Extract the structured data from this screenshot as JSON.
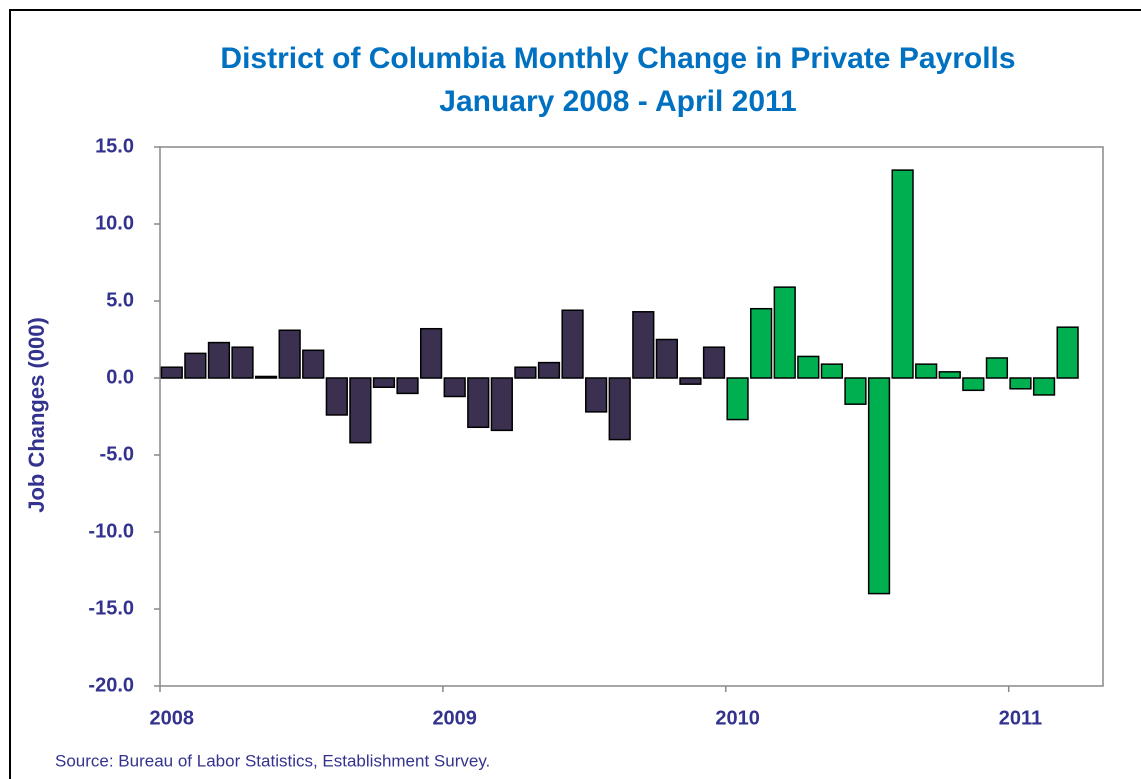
{
  "chart_data": {
    "type": "bar",
    "title": "District of Columbia Monthly Change in Private Payrolls",
    "subtitle": "January 2008 - April 2011",
    "y_label": "Job Changes (000)",
    "source": "Source: Bureau of Labor Statistics, Establishment Survey.",
    "categories": [
      "2008",
      null,
      null,
      null,
      null,
      null,
      null,
      null,
      null,
      null,
      null,
      null,
      "2009",
      null,
      null,
      null,
      null,
      null,
      null,
      null,
      null,
      null,
      null,
      null,
      "2010",
      null,
      null,
      null,
      null,
      null,
      null,
      null,
      null,
      null,
      null,
      null,
      "2011",
      null,
      null,
      null
    ],
    "values": [
      0.7,
      1.6,
      2.3,
      2.0,
      0.1,
      3.1,
      1.8,
      -2.4,
      -4.2,
      -0.6,
      -1.0,
      3.2,
      -1.2,
      -3.2,
      -3.4,
      0.7,
      1.0,
      4.4,
      -2.2,
      -4.0,
      4.3,
      2.5,
      -0.4,
      2.0,
      -2.7,
      4.5,
      5.9,
      1.4,
      0.9,
      -1.7,
      -14.0,
      13.5,
      0.9,
      0.4,
      -0.8,
      1.3,
      -0.7,
      -1.1,
      3.3,
      null
    ],
    "colors": [
      "#3b3050",
      "#3b3050",
      "#3b3050",
      "#3b3050",
      "#3b3050",
      "#3b3050",
      "#3b3050",
      "#3b3050",
      "#3b3050",
      "#3b3050",
      "#3b3050",
      "#3b3050",
      "#3b3050",
      "#3b3050",
      "#3b3050",
      "#3b3050",
      "#3b3050",
      "#3b3050",
      "#3b3050",
      "#3b3050",
      "#3b3050",
      "#3b3050",
      "#3b3050",
      "#3b3050",
      "#00b050",
      "#00b050",
      "#00b050",
      "#00b050",
      "#00b050",
      "#00b050",
      "#00b050",
      "#00b050",
      "#00b050",
      "#00b050",
      "#00b050",
      "#00b050",
      "#00b050",
      "#00b050",
      "#00b050",
      "#00b050"
    ],
    "ylim": [
      -20,
      15
    ],
    "yticks": [
      {
        "value": -20,
        "label": "-20.0"
      },
      {
        "value": -15,
        "label": "-15.0"
      },
      {
        "value": -10,
        "label": "-10.0"
      },
      {
        "value": -5,
        "label": "-5.0"
      },
      {
        "value": 0,
        "label": "0.0"
      },
      {
        "value": 5,
        "label": "5.0"
      },
      {
        "value": 10,
        "label": "10.0"
      },
      {
        "value": 15,
        "label": "15.0"
      }
    ],
    "grid": false
  }
}
